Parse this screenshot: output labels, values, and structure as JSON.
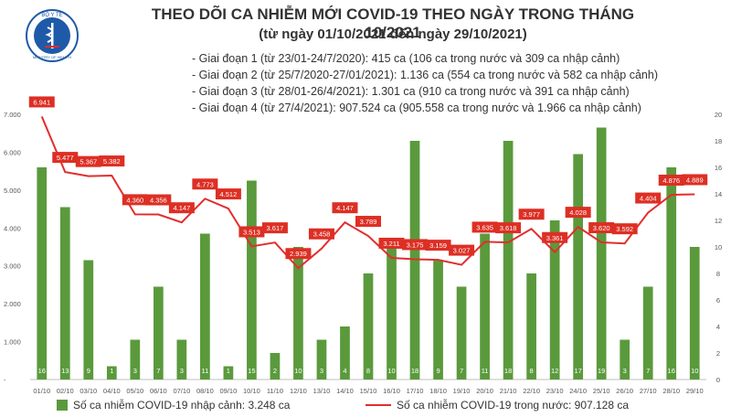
{
  "header": {
    "logo_text": "BỘ Y TẾ",
    "logo_subtext": "MINISTRY OF HEALTH",
    "title": "THEO DÕI CA NHIỄM MỚI COVID-19 THEO NGÀY TRONG THÁNG 10/2021",
    "subtitle": "(từ ngày 01/10/2021 đến ngày 29/10/2021)",
    "notes": [
      "- Giai đoạn 1 (từ 23/01-24/7/2020): 415 ca (106 ca trong nước và 309 ca nhập cảnh)",
      "- Giai đoạn 2 (từ 25/7/2020-27/01/2021): 1.136 ca (554 ca trong nước và 582 ca nhập cảnh)",
      "- Giai đoạn 3 (từ 28/01-26/4/2021): 1.301 ca (910 ca trong nước và 391 ca nhập cảnh)",
      "- Giai đoạn 4 (từ 27/4/2021): 907.524 ca (905.558 ca trong nước và 1.966 ca nhập cảnh)"
    ]
  },
  "colors": {
    "bar": "#5a9a3c",
    "line": "#e22d2d",
    "label_box": "#dd2f24",
    "text": "#333333",
    "axis_text": "#555555",
    "grid": "#d9d9d9"
  },
  "chart_data": {
    "type": "bar+line",
    "categories": [
      "01/10",
      "02/10",
      "03/10",
      "04/10",
      "05/10",
      "06/10",
      "07/10",
      "08/10",
      "09/10",
      "10/10",
      "11/10",
      "12/10",
      "13/10",
      "14/10",
      "15/10",
      "16/10",
      "17/10",
      "18/10",
      "19/10",
      "20/10",
      "21/10",
      "22/10",
      "23/10",
      "24/10",
      "25/10",
      "26/10",
      "27/10",
      "28/10",
      "29/10"
    ],
    "bar_series": {
      "name": "Số ca nhiễm COVID-19 nhập cảnh: 3.248 ca",
      "axis": "right",
      "values": [
        16,
        13,
        9,
        1,
        3,
        7,
        3,
        11,
        1,
        15,
        2,
        10,
        3,
        4,
        8,
        10,
        18,
        9,
        7,
        11,
        18,
        8,
        12,
        17,
        19,
        3,
        7,
        16,
        10
      ],
      "labels": [
        "16",
        "13",
        "9",
        "1",
        "3",
        "7",
        "3",
        "11",
        "1",
        "15",
        "2",
        "10",
        "3",
        "4",
        "8",
        "10",
        "18",
        "9",
        "7",
        "11",
        "18",
        "8",
        "12",
        "17",
        "19",
        "3",
        "7",
        "16",
        "10"
      ]
    },
    "line_series": {
      "name": "Số ca nhiễm COVID-19 trong nước: 907.128 ca",
      "axis": "left",
      "values": [
        6941,
        5477,
        5367,
        5382,
        4360,
        4356,
        4147,
        4773,
        4512,
        3513,
        3617,
        2939,
        3458,
        4147,
        3789,
        3211,
        3175,
        3159,
        3027,
        3635,
        3618,
        3977,
        3361,
        4028,
        3620,
        3592,
        4404,
        4876,
        4889
      ],
      "labels": [
        "6.941",
        "5.477",
        "5.367",
        "5.382",
        "4.360",
        "4.356",
        "4.147",
        "4.773",
        "4.512",
        "3.513",
        "3.617",
        "2.939",
        "3.458",
        "4.147",
        "3.789",
        "3.211",
        "3.175",
        "3.159",
        "3.027",
        "3.635",
        "3.618",
        "3.977",
        "3.361",
        "4.028",
        "3.620",
        "3.592",
        "4.404",
        "4.876",
        "4.889"
      ]
    },
    "y_left": {
      "min": 0,
      "max": 7000,
      "ticks": [
        "-",
        "1.000",
        "2.000",
        "3.000",
        "4.000",
        "5.000",
        "6.000",
        "7.000"
      ]
    },
    "y_right": {
      "min": 0,
      "max": 20,
      "ticks": [
        "0",
        "2",
        "4",
        "6",
        "8",
        "10",
        "12",
        "14",
        "16",
        "18",
        "20"
      ]
    },
    "grid": false,
    "legend_position": "bottom"
  }
}
